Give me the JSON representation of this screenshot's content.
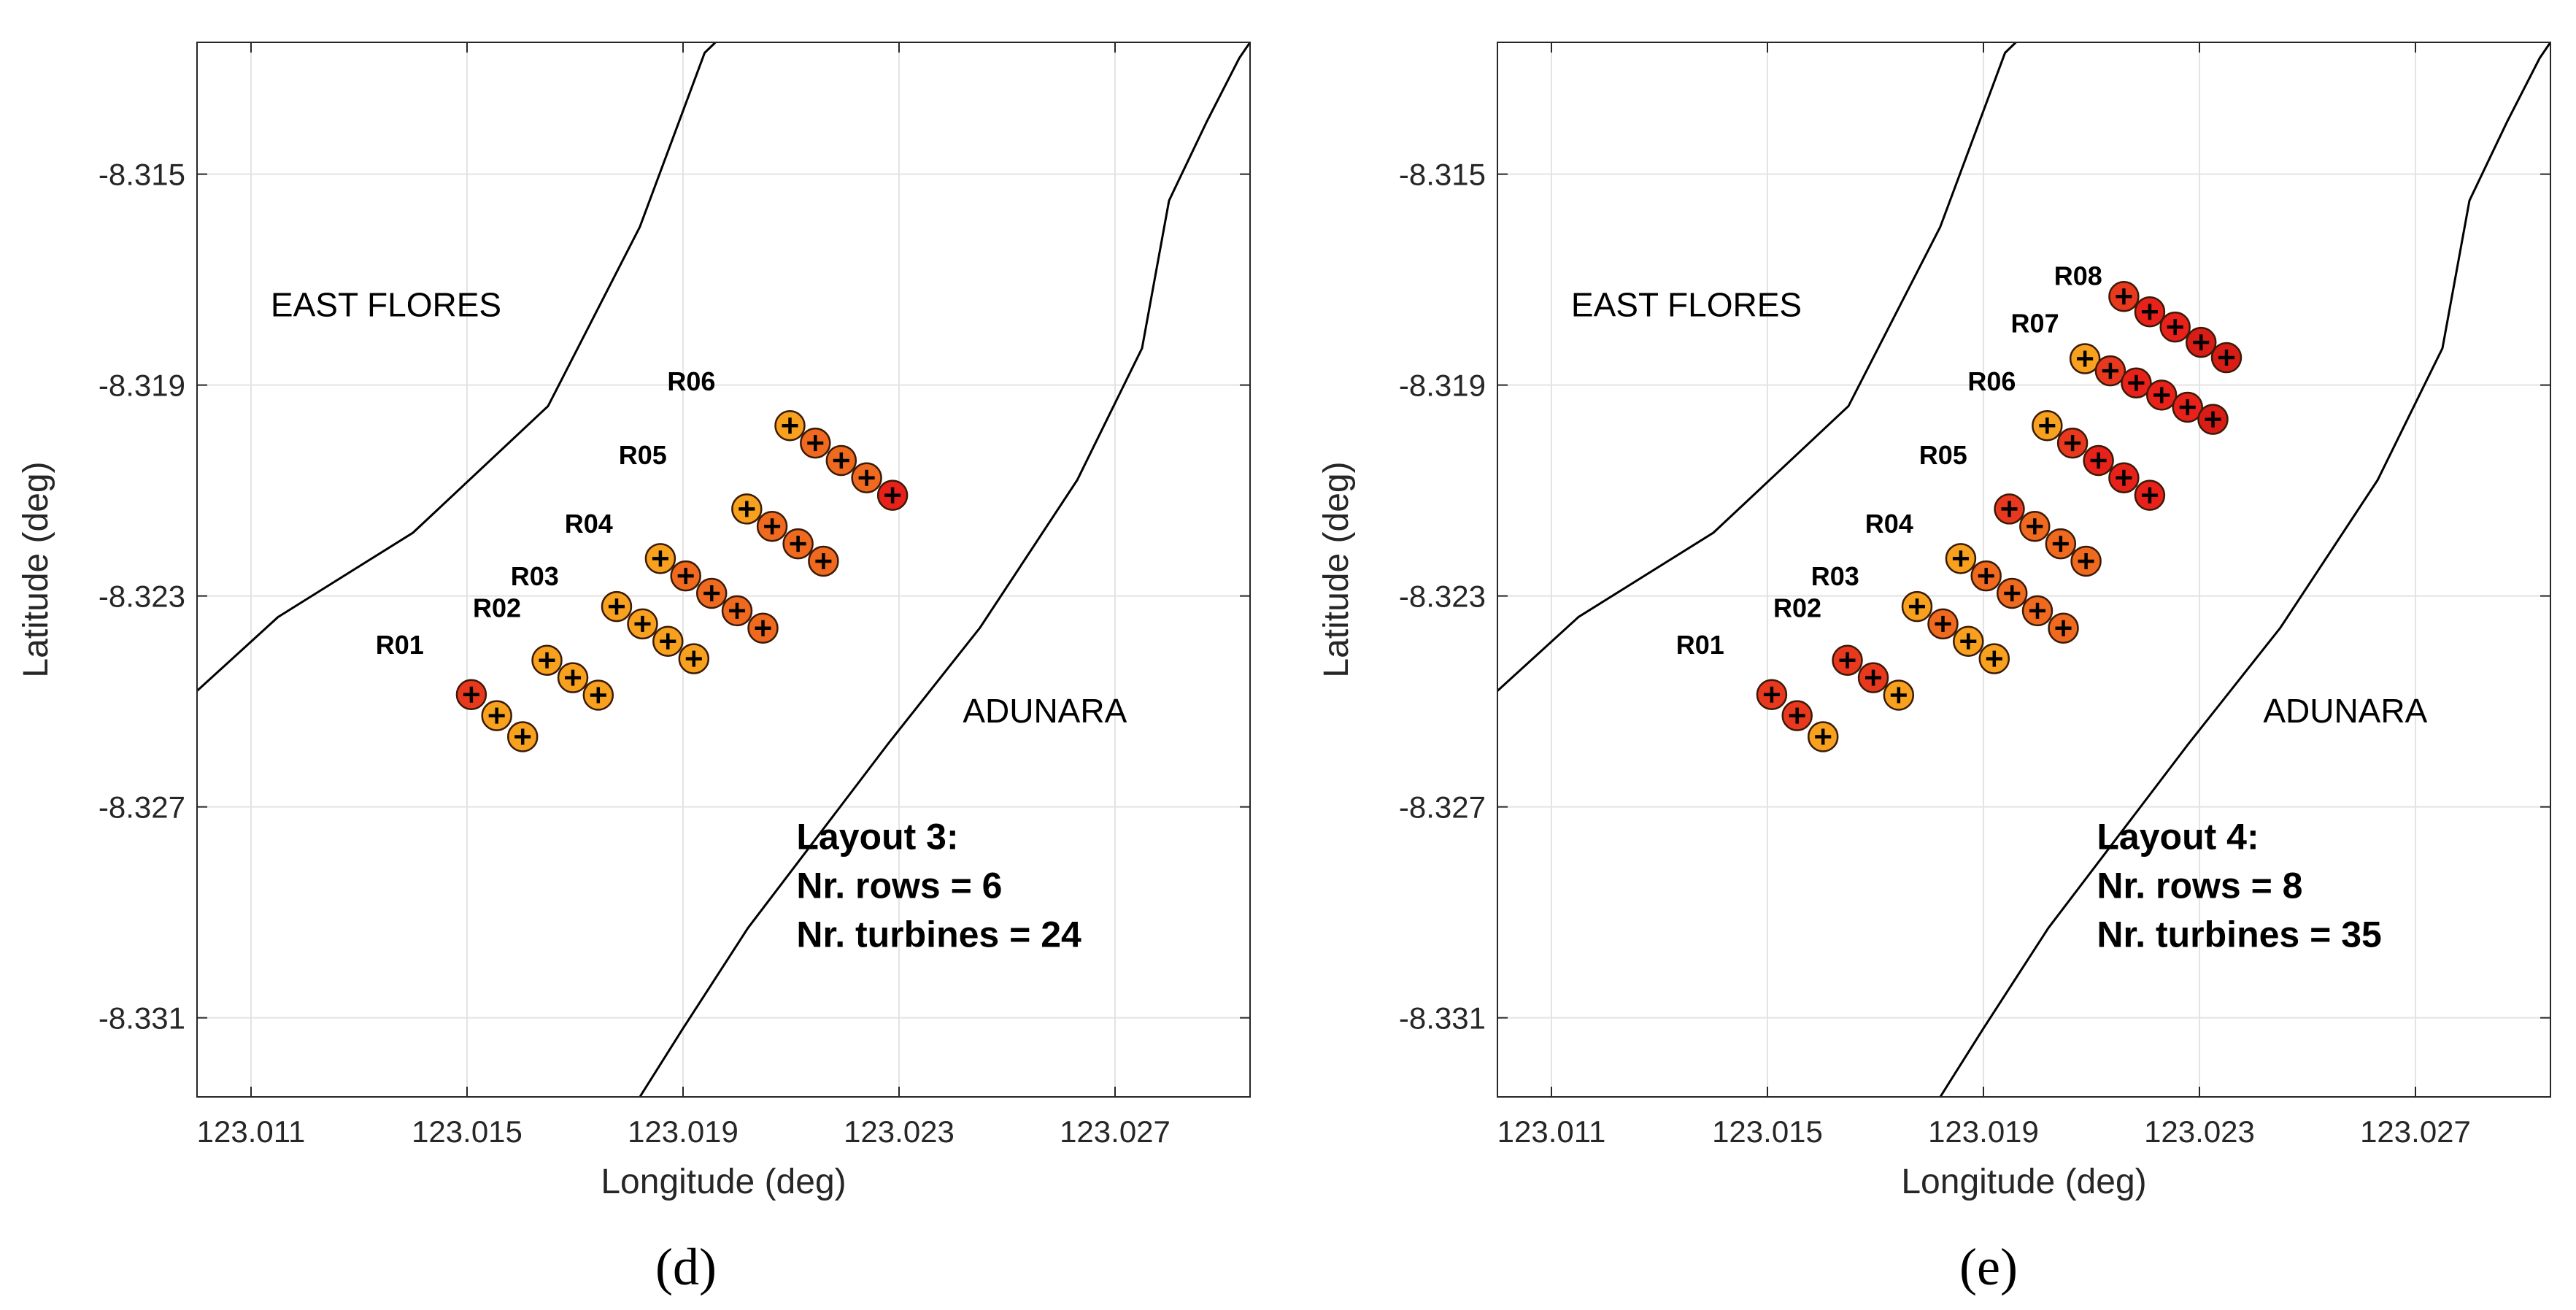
{
  "chart_data": [
    {
      "type": "scatter",
      "panel_label": "(d)",
      "title": "",
      "xlabel": "Longitude (deg)",
      "ylabel": "Latitude (deg)",
      "xlim": [
        123.01,
        123.0295
      ],
      "ylim": [
        -8.3325,
        -8.3125
      ],
      "xticks": [
        123.011,
        123.015,
        123.019,
        123.023,
        123.027
      ],
      "xtick_labels": [
        "123.011",
        "123.015",
        "123.019",
        "123.023",
        "123.027"
      ],
      "yticks": [
        -8.315,
        -8.319,
        -8.323,
        -8.327,
        -8.331
      ],
      "ytick_labels": [
        "-8.315",
        "-8.319",
        "-8.323",
        "-8.327",
        "-8.331"
      ],
      "grid": true,
      "regions": [
        {
          "name": "EAST FLORES",
          "x": 123.0135,
          "y": -8.3177
        },
        {
          "name": "ADUNARA",
          "x": 123.0257,
          "y": -8.3254
        }
      ],
      "annotation": {
        "lines": [
          "Layout 3:",
          "Nr. rows = 6",
          "Nr. turbines = 24"
        ],
        "x": 123.0211,
        "y": -8.3278
      },
      "coastlines": [
        [
          [
            123.01,
            -8.3248
          ],
          [
            123.0115,
            -8.3234
          ],
          [
            123.014,
            -8.3218
          ],
          [
            123.0165,
            -8.3194
          ],
          [
            123.0182,
            -8.316
          ],
          [
            123.0194,
            -8.3127
          ],
          [
            123.0196,
            -8.3125
          ]
        ],
        [
          [
            123.0182,
            -8.3325
          ],
          [
            123.019,
            -8.3312
          ],
          [
            123.0202,
            -8.3293
          ],
          [
            123.0228,
            -8.3258
          ],
          [
            123.0245,
            -8.3236
          ],
          [
            123.0263,
            -8.3208
          ],
          [
            123.0275,
            -8.3183
          ],
          [
            123.028,
            -8.3155
          ],
          [
            123.0287,
            -8.314
          ],
          [
            123.0293,
            -8.3128
          ],
          [
            123.0295,
            -8.3125
          ]
        ]
      ],
      "rows": [
        {
          "label": "R01",
          "label_x": 123.0142,
          "label_y": -8.3241,
          "turbines": [
            [
              123.01508,
              -8.32487,
              "#e8391f"
            ],
            [
              123.01555,
              -8.32527,
              "#f7a11e"
            ],
            [
              123.01603,
              -8.32567,
              "#f7a11e"
            ]
          ]
        },
        {
          "label": "R02",
          "label_x": 123.016,
          "label_y": -8.3234,
          "turbines": [
            [
              123.01648,
              -8.32422,
              "#f7a11e"
            ],
            [
              123.01696,
              -8.32455,
              "#f7a11e"
            ],
            [
              123.01743,
              -8.32488,
              "#f7a11e"
            ]
          ]
        },
        {
          "label": "R03",
          "label_x": 123.0167,
          "label_y": -8.3228,
          "turbines": [
            [
              123.01777,
              -8.3232,
              "#f7a11e"
            ],
            [
              123.01825,
              -8.32353,
              "#f7a11e"
            ],
            [
              123.01872,
              -8.32386,
              "#f7a11e"
            ],
            [
              123.0192,
              -8.32419,
              "#f7a11e"
            ]
          ]
        },
        {
          "label": "R04",
          "label_x": 123.0177,
          "label_y": -8.3218,
          "turbines": [
            [
              123.01858,
              -8.32229,
              "#f7a11e"
            ],
            [
              123.01905,
              -8.32262,
              "#ef6a1e"
            ],
            [
              123.01953,
              -8.32295,
              "#ef6a1e"
            ],
            [
              123.02,
              -8.32328,
              "#ef6a1e"
            ],
            [
              123.02048,
              -8.32361,
              "#ef6a1e"
            ]
          ]
        },
        {
          "label": "R05",
          "label_x": 123.0187,
          "label_y": -8.3205,
          "turbines": [
            [
              123.02018,
              -8.32135,
              "#f7a11e"
            ],
            [
              123.02065,
              -8.32168,
              "#ef6a1e"
            ],
            [
              123.02113,
              -8.32201,
              "#ef6a1e"
            ],
            [
              123.0216,
              -8.32234,
              "#ef6a1e"
            ]
          ]
        },
        {
          "label": "R06",
          "label_x": 123.0196,
          "label_y": -8.3191,
          "turbines": [
            [
              123.02098,
              -8.31977,
              "#f7a11e"
            ],
            [
              123.02145,
              -8.3201,
              "#ef6a1e"
            ],
            [
              123.02193,
              -8.32043,
              "#ef6a1e"
            ],
            [
              123.0224,
              -8.32076,
              "#ef6a1e"
            ],
            [
              123.02288,
              -8.32109,
              "#e8221a"
            ]
          ]
        }
      ]
    },
    {
      "type": "scatter",
      "panel_label": "(e)",
      "title": "",
      "xlabel": "Longitude (deg)",
      "ylabel": "Latitude (deg)",
      "xlim": [
        123.01,
        123.0295
      ],
      "ylim": [
        -8.3325,
        -8.3125
      ],
      "xticks": [
        123.011,
        123.015,
        123.019,
        123.023,
        123.027
      ],
      "xtick_labels": [
        "123.011",
        "123.015",
        "123.019",
        "123.023",
        "123.027"
      ],
      "yticks": [
        -8.315,
        -8.319,
        -8.323,
        -8.327,
        -8.331
      ],
      "ytick_labels": [
        "-8.315",
        "-8.319",
        "-8.323",
        "-8.327",
        "-8.331"
      ],
      "grid": true,
      "regions": [
        {
          "name": "EAST FLORES",
          "x": 123.0135,
          "y": -8.3177
        },
        {
          "name": "ADUNARA",
          "x": 123.0257,
          "y": -8.3254
        }
      ],
      "annotation": {
        "lines": [
          "Layout 4:",
          "Nr. rows = 8",
          "Nr. turbines = 35"
        ],
        "x": 123.0211,
        "y": -8.3278
      },
      "coastlines": [
        [
          [
            123.01,
            -8.3248
          ],
          [
            123.0115,
            -8.3234
          ],
          [
            123.014,
            -8.3218
          ],
          [
            123.0165,
            -8.3194
          ],
          [
            123.0182,
            -8.316
          ],
          [
            123.0194,
            -8.3127
          ],
          [
            123.0196,
            -8.3125
          ]
        ],
        [
          [
            123.0182,
            -8.3325
          ],
          [
            123.019,
            -8.3312
          ],
          [
            123.0202,
            -8.3293
          ],
          [
            123.0228,
            -8.3258
          ],
          [
            123.0245,
            -8.3236
          ],
          [
            123.0263,
            -8.3208
          ],
          [
            123.0275,
            -8.3183
          ],
          [
            123.028,
            -8.3155
          ],
          [
            123.0287,
            -8.314
          ],
          [
            123.0293,
            -8.3128
          ],
          [
            123.0295,
            -8.3125
          ]
        ]
      ],
      "rows": [
        {
          "label": "R01",
          "label_x": 123.0142,
          "label_y": -8.3241,
          "turbines": [
            [
              123.01508,
              -8.32487,
              "#e8391f"
            ],
            [
              123.01555,
              -8.32527,
              "#e8391f"
            ],
            [
              123.01603,
              -8.32567,
              "#f7a11e"
            ]
          ]
        },
        {
          "label": "R02",
          "label_x": 123.016,
          "label_y": -8.3234,
          "turbines": [
            [
              123.01648,
              -8.32422,
              "#e8391f"
            ],
            [
              123.01696,
              -8.32455,
              "#e8391f"
            ],
            [
              123.01743,
              -8.32488,
              "#f7a11e"
            ]
          ]
        },
        {
          "label": "R03",
          "label_x": 123.0167,
          "label_y": -8.3228,
          "turbines": [
            [
              123.01777,
              -8.3232,
              "#f7a11e"
            ],
            [
              123.01825,
              -8.32353,
              "#ef6a1e"
            ],
            [
              123.01872,
              -8.32386,
              "#f7a11e"
            ],
            [
              123.0192,
              -8.32419,
              "#f7a11e"
            ]
          ]
        },
        {
          "label": "R04",
          "label_x": 123.0177,
          "label_y": -8.3218,
          "turbines": [
            [
              123.01858,
              -8.32229,
              "#f7a11e"
            ],
            [
              123.01905,
              -8.32262,
              "#ef6a1e"
            ],
            [
              123.01953,
              -8.32295,
              "#ef6a1e"
            ],
            [
              123.02,
              -8.32328,
              "#ef6a1e"
            ],
            [
              123.02048,
              -8.32361,
              "#ef6a1e"
            ]
          ]
        },
        {
          "label": "R05",
          "label_x": 123.0187,
          "label_y": -8.3205,
          "turbines": [
            [
              123.01948,
              -8.32135,
              "#e8391f"
            ],
            [
              123.01995,
              -8.32168,
              "#ef6a1e"
            ],
            [
              123.02043,
              -8.32201,
              "#ef6a1e"
            ],
            [
              123.0209,
              -8.32234,
              "#ef6a1e"
            ]
          ]
        },
        {
          "label": "R06",
          "label_x": 123.0196,
          "label_y": -8.3191,
          "turbines": [
            [
              123.02018,
              -8.31977,
              "#f7a11e"
            ],
            [
              123.02065,
              -8.3201,
              "#e8391f"
            ],
            [
              123.02113,
              -8.32043,
              "#e8221a"
            ],
            [
              123.0216,
              -8.32076,
              "#e8221a"
            ],
            [
              123.02208,
              -8.32109,
              "#e8221a"
            ]
          ]
        },
        {
          "label": "R07",
          "label_x": 123.0204,
          "label_y": -8.318,
          "turbines": [
            [
              123.02088,
              -8.3185,
              "#f7a11e"
            ],
            [
              123.02135,
              -8.31873,
              "#e8391f"
            ],
            [
              123.02183,
              -8.31896,
              "#e8221a"
            ],
            [
              123.0223,
              -8.31919,
              "#e8221a"
            ],
            [
              123.02278,
              -8.31942,
              "#e8221a"
            ],
            [
              123.02325,
              -8.31965,
              "#d81d16"
            ]
          ]
        },
        {
          "label": "R08",
          "label_x": 123.0212,
          "label_y": -8.3171,
          "turbines": [
            [
              123.0216,
              -8.31732,
              "#e8391f"
            ],
            [
              123.02208,
              -8.31761,
              "#e8221a"
            ],
            [
              123.02255,
              -8.3179,
              "#e8221a"
            ],
            [
              123.02303,
              -8.31819,
              "#d81d16"
            ],
            [
              123.0235,
              -8.31848,
              "#d81d16"
            ]
          ]
        }
      ]
    }
  ]
}
